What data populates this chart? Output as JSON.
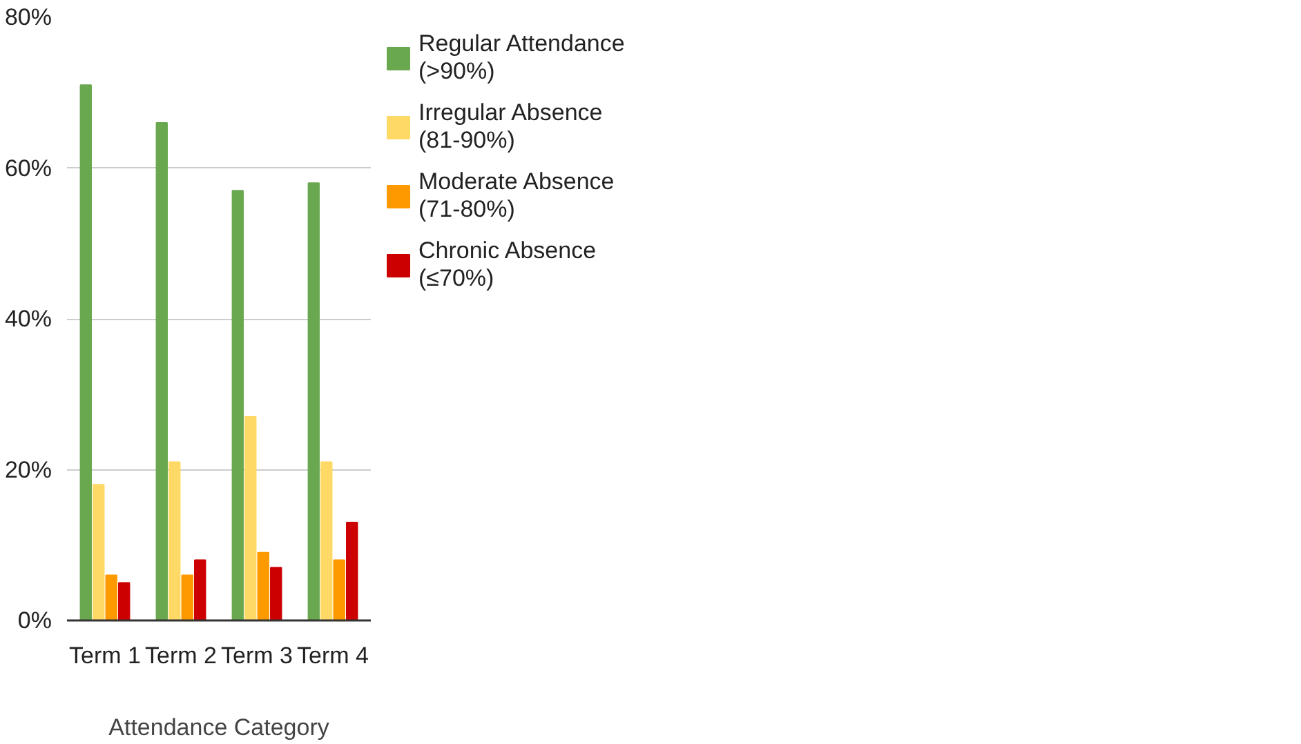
{
  "chart_data": {
    "type": "bar",
    "xlabel": "Attendance Category",
    "categories": [
      "Term 1",
      "Term 2",
      "Term 3",
      "Term 4"
    ],
    "series": [
      {
        "name": "Regular Attendance (>90%)",
        "color": "#6aa84f",
        "values": [
          71,
          66,
          57,
          58
        ]
      },
      {
        "name": "Irregular Absence (81-90%)",
        "color": "#ffd966",
        "values": [
          18,
          21,
          27,
          21
        ]
      },
      {
        "name": "Moderate Absence (71-80%)",
        "color": "#ff9900",
        "values": [
          6,
          6,
          9,
          8
        ]
      },
      {
        "name": "Chronic Absence (≤70%)",
        "color": "#cc0000",
        "values": [
          5,
          8,
          7,
          13
        ]
      }
    ],
    "ylim": [
      0,
      80
    ],
    "yticks": [
      {
        "value": 0,
        "label": "0%"
      },
      {
        "value": 20,
        "label": "20%"
      },
      {
        "value": 40,
        "label": "40%"
      },
      {
        "value": 60,
        "label": "60%"
      },
      {
        "value": 80,
        "label": "80%"
      }
    ],
    "grid": "y",
    "legend": "right"
  }
}
